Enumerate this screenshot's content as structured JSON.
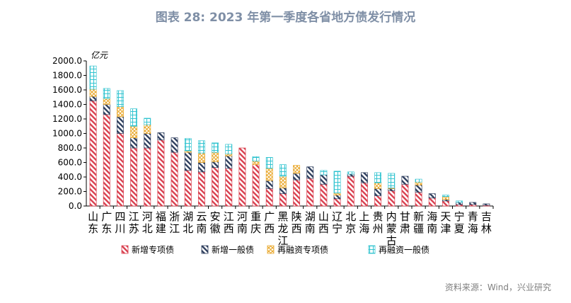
{
  "figure_title": "图表 28: 2023 年第一季度各省地方债发行情况",
  "source": "资料来源：Wind，兴业研究",
  "chart_data": {
    "type": "bar",
    "stacked": true,
    "yunit": "亿元",
    "ylim": [
      0,
      2000
    ],
    "yticks": [
      "0.0",
      "200.0",
      "400.0",
      "600.0",
      "800.0",
      "1000.0",
      "1200.0",
      "1400.0",
      "1600.0",
      "1800.0",
      "2000.0"
    ],
    "categories": [
      "山东",
      "广东",
      "四川",
      "江苏",
      "河北",
      "福建",
      "浙江",
      "湖北",
      "云南",
      "安徽",
      "江西",
      "河南",
      "重庆",
      "广西",
      "黑龙江",
      "陕西",
      "湖南",
      "山西",
      "辽宁",
      "北京",
      "上海",
      "贵州",
      "内蒙古",
      "甘肃",
      "新疆",
      "海南",
      "天津",
      "宁夏",
      "青海",
      "吉林"
    ],
    "series": [
      {
        "name": "新增专项债",
        "color": "#d9404f",
        "values": [
          1450,
          1260,
          1000,
          800,
          800,
          910,
          740,
          490,
          470,
          530,
          520,
          800,
          570,
          240,
          170,
          360,
          380,
          300,
          100,
          410,
          320,
          140,
          210,
          300,
          190,
          110,
          70,
          20,
          20,
          10
        ]
      },
      {
        "name": "新增一般债",
        "color": "#2f3f5e",
        "values": [
          60,
          140,
          230,
          140,
          200,
          100,
          200,
          250,
          130,
          80,
          170,
          0,
          0,
          110,
          80,
          90,
          160,
          130,
          50,
          30,
          140,
          100,
          30,
          110,
          100,
          60,
          20,
          30,
          30,
          20
        ]
      },
      {
        "name": "再融资专项债",
        "color": "#e9a72a",
        "values": [
          100,
          80,
          140,
          160,
          120,
          0,
          0,
          20,
          130,
          130,
          30,
          0,
          50,
          170,
          160,
          110,
          0,
          0,
          30,
          0,
          0,
          80,
          10,
          0,
          40,
          0,
          40,
          0,
          0,
          0
        ]
      },
      {
        "name": "再融资一般债",
        "color": "#33c4d0",
        "values": [
          320,
          140,
          220,
          240,
          90,
          0,
          0,
          170,
          170,
          130,
          130,
          0,
          60,
          150,
          160,
          0,
          0,
          60,
          300,
          30,
          0,
          140,
          200,
          0,
          40,
          0,
          20,
          20,
          0,
          0
        ]
      }
    ]
  }
}
